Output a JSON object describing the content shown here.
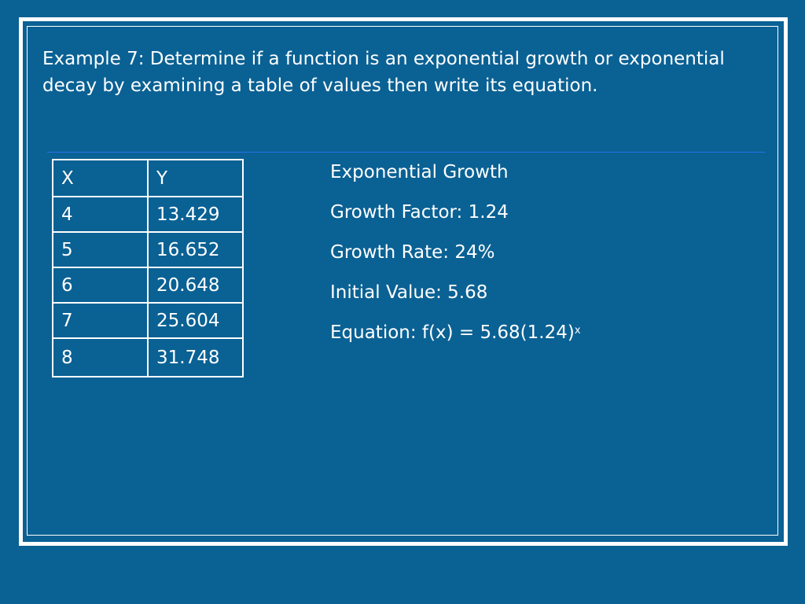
{
  "heading": "Example 7:  Determine if a function is an exponential growth or exponential decay by examining a table of values then write its equation.",
  "table": {
    "headers": [
      "X",
      "Y"
    ],
    "rows": [
      [
        "4",
        "13.429"
      ],
      [
        "5",
        "16.652"
      ],
      [
        "6",
        "20.648"
      ],
      [
        "7",
        "25.604"
      ],
      [
        "8",
        "31.748"
      ]
    ]
  },
  "info": {
    "type_label": "Exponential Growth",
    "growth_factor": "Growth Factor: 1.24",
    "growth_rate": "Growth Rate:  24%",
    "initial_value": "Initial Value: 5.68",
    "equation_base": "Equation:  f(x) = 5.68(1.24)",
    "equation_exponent": "x"
  },
  "colors": {
    "background": "#0a6194",
    "divider": "#2a6fe8",
    "text": "#ffffff"
  }
}
